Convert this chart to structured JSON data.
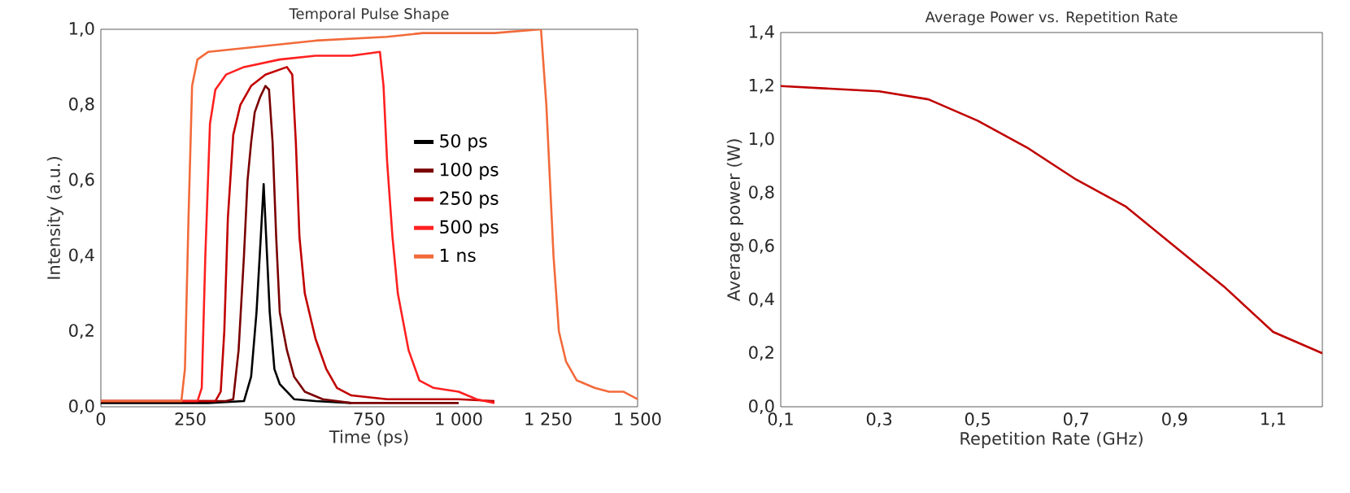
{
  "chart_data": [
    {
      "type": "line",
      "title": "Temporal Pulse Shape",
      "xlabel": "Time (ps)",
      "ylabel": "Intensity (a.u.)",
      "legend": "center",
      "xlim": [
        0,
        1500
      ],
      "xticks": [
        0,
        250,
        500,
        750,
        {
          "value": 1000,
          "label": "1 000"
        },
        {
          "value": 1250,
          "label": "1 250"
        },
        {
          "value": 1500,
          "label": "1 500"
        }
      ],
      "ylim": [
        0,
        1
      ],
      "yticks": [
        {
          "value": 0,
          "label": "0,0"
        },
        {
          "value": 0.2,
          "label": "0,2"
        },
        {
          "value": 0.4,
          "label": "0,4"
        },
        {
          "value": 0.6,
          "label": "0,6"
        },
        {
          "value": 0.8,
          "label": "0,8"
        },
        {
          "value": 1,
          "label": "1,0"
        }
      ],
      "series": [
        {
          "name": "50 ps",
          "color": "#000000",
          "x": [
            0,
            300,
            400,
            420,
            435,
            447,
            455,
            462,
            472,
            485,
            500,
            520,
            540,
            600,
            700
          ],
          "values": [
            0.01,
            0.01,
            0.015,
            0.08,
            0.25,
            0.45,
            0.59,
            0.45,
            0.25,
            0.1,
            0.06,
            0.04,
            0.02,
            0.015,
            0.01
          ]
        },
        {
          "name": "100 ps",
          "color": "#7a0000",
          "x": [
            0,
            350,
            370,
            385,
            400,
            410,
            420,
            430,
            445,
            460,
            470,
            480,
            490,
            500,
            520,
            540,
            570,
            620,
            700,
            800,
            1000
          ],
          "values": [
            0.015,
            0.015,
            0.02,
            0.15,
            0.4,
            0.6,
            0.7,
            0.78,
            0.82,
            0.85,
            0.84,
            0.7,
            0.45,
            0.25,
            0.15,
            0.08,
            0.04,
            0.02,
            0.01,
            0.01,
            0.01
          ]
        },
        {
          "name": "250 ps",
          "color": "#c00000",
          "x": [
            0,
            320,
            335,
            345,
            355,
            370,
            390,
            420,
            460,
            520,
            535,
            545,
            555,
            570,
            600,
            630,
            660,
            700,
            800,
            1000,
            1100
          ],
          "values": [
            0.015,
            0.015,
            0.04,
            0.2,
            0.5,
            0.72,
            0.8,
            0.85,
            0.88,
            0.9,
            0.88,
            0.7,
            0.45,
            0.3,
            0.18,
            0.1,
            0.05,
            0.03,
            0.02,
            0.02,
            0.015
          ]
        },
        {
          "name": "500 ps",
          "color": "#ff2020",
          "x": [
            0,
            270,
            282,
            292,
            305,
            320,
            350,
            400,
            500,
            600,
            700,
            780,
            790,
            800,
            815,
            830,
            860,
            890,
            930,
            1000,
            1050,
            1100
          ],
          "values": [
            0.015,
            0.015,
            0.05,
            0.4,
            0.75,
            0.84,
            0.88,
            0.9,
            0.92,
            0.93,
            0.93,
            0.94,
            0.85,
            0.65,
            0.45,
            0.3,
            0.15,
            0.07,
            0.05,
            0.04,
            0.02,
            0.01
          ]
        },
        {
          "name": "1 ns",
          "color": "#f26a3a",
          "x": [
            0,
            225,
            235,
            245,
            255,
            270,
            300,
            400,
            500,
            600,
            700,
            800,
            900,
            1000,
            1100,
            1230,
            1245,
            1255,
            1265,
            1280,
            1300,
            1330,
            1380,
            1420,
            1460,
            1500
          ],
          "values": [
            0.015,
            0.015,
            0.1,
            0.5,
            0.85,
            0.92,
            0.94,
            0.95,
            0.96,
            0.97,
            0.975,
            0.98,
            0.99,
            0.99,
            0.99,
            1.0,
            0.8,
            0.6,
            0.4,
            0.2,
            0.12,
            0.07,
            0.05,
            0.04,
            0.04,
            0.02
          ]
        }
      ]
    },
    {
      "type": "line",
      "title": "Average Power vs. Repetition Rate",
      "xlabel": "Repetition Rate (GHz)",
      "ylabel": "Average power (W)",
      "xlim": [
        0.1,
        1.2
      ],
      "xticks": [
        {
          "value": 0.1,
          "label": "0,1"
        },
        {
          "value": 0.3,
          "label": "0,3"
        },
        {
          "value": 0.5,
          "label": "0,5"
        },
        {
          "value": 0.7,
          "label": "0,7"
        },
        {
          "value": 0.9,
          "label": "0,9"
        },
        {
          "value": 1.1,
          "label": "1,1"
        }
      ],
      "ylim": [
        0,
        1.4
      ],
      "yticks": [
        {
          "value": 0,
          "label": "0,0"
        },
        {
          "value": 0.2,
          "label": "0,2"
        },
        {
          "value": 0.4,
          "label": "0,4"
        },
        {
          "value": 0.6,
          "label": "0,6"
        },
        {
          "value": 0.8,
          "label": "0,8"
        },
        {
          "value": 1.0,
          "label": "1,0"
        },
        {
          "value": 1.2,
          "label": "1,2"
        },
        {
          "value": 1.4,
          "label": "1,4"
        }
      ],
      "series": [
        {
          "color": "#c00000",
          "x": [
            0.1,
            0.2,
            0.3,
            0.4,
            0.5,
            0.6,
            0.7,
            0.8,
            0.9,
            1.0,
            1.1,
            1.2
          ],
          "values": [
            1.2,
            1.19,
            1.18,
            1.15,
            1.07,
            0.97,
            0.85,
            0.75,
            0.6,
            0.45,
            0.28,
            0.2
          ]
        }
      ]
    }
  ]
}
